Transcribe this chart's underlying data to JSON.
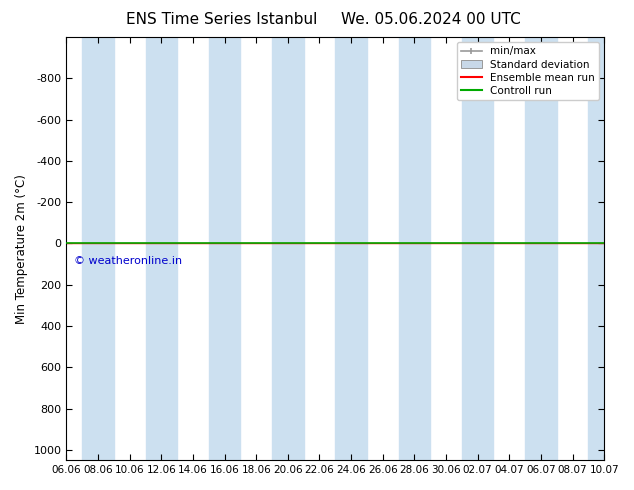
{
  "title_left": "ENS Time Series Istanbul",
  "title_right": "We. 05.06.2024 00 UTC",
  "ylabel": "Min Temperature 2m (°C)",
  "ylim": [
    -1000,
    1050
  ],
  "yticks": [
    -800,
    -600,
    -400,
    -200,
    0,
    200,
    400,
    600,
    800,
    1000
  ],
  "xlim": [
    0,
    34
  ],
  "xtick_labels": [
    "06.06",
    "08.06",
    "10.06",
    "12.06",
    "14.06",
    "16.06",
    "18.06",
    "20.06",
    "22.06",
    "24.06",
    "26.06",
    "28.06",
    "30.06",
    "02.07",
    "04.07",
    "06.07",
    "08.07",
    "10.07"
  ],
  "xtick_positions": [
    0,
    2,
    4,
    6,
    8,
    10,
    12,
    14,
    16,
    18,
    20,
    22,
    24,
    26,
    28,
    30,
    32,
    34
  ],
  "shade_bands": [
    [
      1,
      3
    ],
    [
      5,
      7
    ],
    [
      9,
      11
    ],
    [
      13,
      15
    ],
    [
      17,
      19
    ],
    [
      21,
      23
    ],
    [
      25,
      27
    ],
    [
      29,
      31
    ],
    [
      33,
      35
    ]
  ],
  "shade_color": "#cce0f0",
  "control_run_y": 0,
  "control_run_color": "#00aa00",
  "ensemble_mean_color": "#ff0000",
  "copyright_text": "© weatheronline.in",
  "copyright_color": "#0000cc",
  "legend_labels": [
    "min/max",
    "Standard deviation",
    "Ensemble mean run",
    "Controll run"
  ],
  "legend_colors": [
    "#999999",
    "#c8d8e8",
    "#ff0000",
    "#00aa00"
  ],
  "background_color": "#ffffff",
  "plot_bg_color": "#ffffff"
}
